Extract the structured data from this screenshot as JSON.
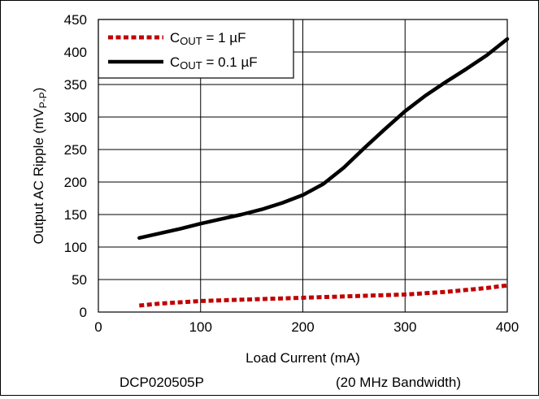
{
  "chart_data": {
    "type": "line",
    "xlabel": "Load Current (mA)",
    "ylabel": "Output AC Ripple (mV",
    "ylabel_sub": "P-P",
    "ylabel_close": ")",
    "xlim": [
      0,
      400
    ],
    "ylim": [
      0,
      450
    ],
    "xticks": [
      0,
      100,
      200,
      300,
      400
    ],
    "yticks": [
      0,
      50,
      100,
      150,
      200,
      250,
      300,
      350,
      400,
      450
    ],
    "grid": true,
    "legend_position": "top-left",
    "series": [
      {
        "name": "C",
        "name_sub": "OUT",
        "name_rest": " = 1 µF",
        "color": "#c00000",
        "style": "dashed",
        "x": [
          40,
          60,
          80,
          100,
          120,
          140,
          160,
          180,
          200,
          220,
          240,
          260,
          280,
          300,
          320,
          340,
          360,
          380,
          400
        ],
        "y": [
          10,
          13,
          15,
          17,
          18,
          19,
          20,
          21,
          22,
          23,
          24,
          25,
          26,
          27,
          29,
          31,
          34,
          37,
          41
        ]
      },
      {
        "name": "C",
        "name_sub": "OUT",
        "name_rest": " = 0.1 µF",
        "color": "#000000",
        "style": "solid",
        "x": [
          40,
          60,
          80,
          100,
          120,
          140,
          160,
          180,
          200,
          220,
          240,
          260,
          280,
          300,
          320,
          340,
          360,
          380,
          400
        ],
        "y": [
          114,
          121,
          128,
          136,
          143,
          150,
          158,
          168,
          180,
          197,
          222,
          252,
          281,
          309,
          333,
          354,
          374,
          395,
          420
        ]
      }
    ]
  },
  "footer": {
    "left": "DCP020505P",
    "right": "(20 MHz Bandwidth)"
  }
}
